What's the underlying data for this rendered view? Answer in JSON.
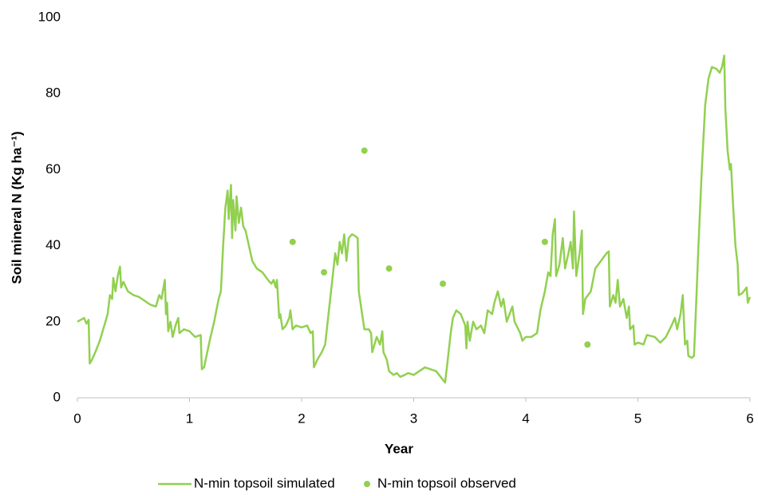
{
  "chart_data": {
    "type": "line",
    "x_label": "Year",
    "y_label": "Soil mineral N (Kg ha⁻¹)",
    "xlim": [
      0,
      6
    ],
    "xticks": [
      0,
      1,
      2,
      3,
      4,
      5,
      6
    ],
    "ylim": [
      0,
      100
    ],
    "yticks": [
      0,
      20,
      40,
      60,
      80,
      100
    ],
    "grid": false,
    "legend": "bottom",
    "series": [
      {
        "name": "N-min topsoil simulated",
        "color": "#92d050",
        "type": "line",
        "x": [
          0,
          0.06,
          0.08,
          0.1,
          0.11,
          0.13,
          0.16,
          0.2,
          0.24,
          0.27,
          0.29,
          0.31,
          0.32,
          0.34,
          0.36,
          0.38,
          0.39,
          0.41,
          0.45,
          0.5,
          0.55,
          0.6,
          0.65,
          0.7,
          0.73,
          0.75,
          0.78,
          0.79,
          0.8,
          0.81,
          0.83,
          0.85,
          0.88,
          0.9,
          0.91,
          0.95,
          1.0,
          1.05,
          1.1,
          1.11,
          1.13,
          1.18,
          1.22,
          1.26,
          1.28,
          1.3,
          1.32,
          1.34,
          1.35,
          1.37,
          1.38,
          1.39,
          1.41,
          1.42,
          1.44,
          1.46,
          1.48,
          1.5,
          1.53,
          1.56,
          1.6,
          1.65,
          1.7,
          1.73,
          1.75,
          1.77,
          1.78,
          1.8,
          1.81,
          1.83,
          1.86,
          1.89,
          1.9,
          1.92,
          1.95,
          2.0,
          2.05,
          2.08,
          2.1,
          2.11,
          2.14,
          2.18,
          2.21,
          2.24,
          2.27,
          2.3,
          2.32,
          2.34,
          2.36,
          2.38,
          2.4,
          2.42,
          2.45,
          2.48,
          2.5,
          2.51,
          2.54,
          2.56,
          2.6,
          2.62,
          2.63,
          2.67,
          2.7,
          2.72,
          2.73,
          2.76,
          2.78,
          2.82,
          2.85,
          2.88,
          2.92,
          2.95,
          3.0,
          3.05,
          3.1,
          3.15,
          3.2,
          3.24,
          3.28,
          3.3,
          3.33,
          3.35,
          3.38,
          3.42,
          3.46,
          3.47,
          3.48,
          3.5,
          3.53,
          3.56,
          3.6,
          3.63,
          3.66,
          3.7,
          3.72,
          3.75,
          3.78,
          3.8,
          3.83,
          3.88,
          3.9,
          3.95,
          3.97,
          4.0,
          4.05,
          4.1,
          4.13,
          4.17,
          4.2,
          4.22,
          4.24,
          4.26,
          4.27,
          4.3,
          4.33,
          4.35,
          4.38,
          4.4,
          4.42,
          4.43,
          4.45,
          4.48,
          4.5,
          4.51,
          4.53,
          4.58,
          4.62,
          4.67,
          4.72,
          4.74,
          4.75,
          4.78,
          4.8,
          4.82,
          4.84,
          4.87,
          4.9,
          4.92,
          4.93,
          4.96,
          4.97,
          5.0,
          5.05,
          5.08,
          5.15,
          5.2,
          5.25,
          5.3,
          5.33,
          5.35,
          5.38,
          5.4,
          5.42,
          5.44,
          5.45,
          5.48,
          5.5,
          5.52,
          5.54,
          5.57,
          5.6,
          5.63,
          5.66,
          5.7,
          5.73,
          5.75,
          5.77,
          5.78,
          5.8,
          5.82,
          5.83,
          5.85,
          5.87,
          5.89,
          5.9,
          5.93,
          5.97,
          5.98,
          6.0
        ],
        "values": [
          20,
          21,
          19.5,
          20.5,
          9,
          10,
          12,
          15,
          19,
          22,
          27,
          26,
          31.5,
          28,
          32,
          34.5,
          29,
          30.5,
          28,
          27,
          26.5,
          25.5,
          24.5,
          24,
          27,
          26,
          31,
          22,
          25,
          17.5,
          20,
          16,
          19.5,
          21,
          17,
          18,
          17.5,
          16,
          16.5,
          7.5,
          8,
          15,
          20,
          26,
          28,
          40,
          50,
          54.5,
          47,
          56,
          42,
          52,
          44,
          53,
          46,
          50,
          45,
          44,
          40,
          36,
          34,
          33,
          31,
          30,
          31,
          29,
          31,
          21,
          22,
          18,
          19,
          21,
          23,
          18,
          19,
          18.5,
          19,
          17,
          17.5,
          8,
          10,
          12,
          14,
          22,
          30,
          38,
          35,
          41,
          38,
          43,
          36,
          42,
          43,
          42.5,
          42,
          28,
          22,
          18,
          18,
          17,
          12,
          16,
          14,
          17.5,
          12,
          10,
          7,
          6,
          6.5,
          5.5,
          6,
          6.5,
          6,
          7,
          8,
          7.5,
          7,
          5.5,
          4,
          9,
          17,
          21,
          23,
          22,
          19,
          13,
          20,
          15,
          20,
          18,
          19,
          17,
          23,
          22,
          25,
          28,
          24,
          26,
          20,
          24,
          20,
          17,
          15,
          16,
          16,
          17,
          23,
          28,
          33,
          32,
          43,
          47,
          32,
          35,
          42,
          34,
          38,
          41,
          34,
          49,
          32,
          38,
          44,
          22,
          26,
          28,
          34,
          36,
          38,
          38.5,
          24,
          27,
          25,
          31,
          24,
          26,
          21,
          24,
          18,
          19,
          14,
          14.5,
          14,
          16.5,
          16,
          14.5,
          16,
          19,
          21,
          18,
          22,
          27,
          14,
          15,
          11,
          10.5,
          11,
          25,
          40,
          60,
          77,
          84,
          87,
          86.5,
          85.5,
          87,
          90,
          76,
          65,
          60,
          61.5,
          50,
          40,
          35,
          27,
          27.5,
          29,
          25,
          26.5
        ]
      },
      {
        "name": "N-min topsoil observed",
        "color": "#92d050",
        "type": "scatter",
        "x": [
          1.92,
          2.2,
          2.56,
          2.78,
          3.26,
          4.17,
          4.55
        ],
        "values": [
          41,
          33,
          65,
          34,
          30,
          41,
          14
        ]
      }
    ]
  }
}
